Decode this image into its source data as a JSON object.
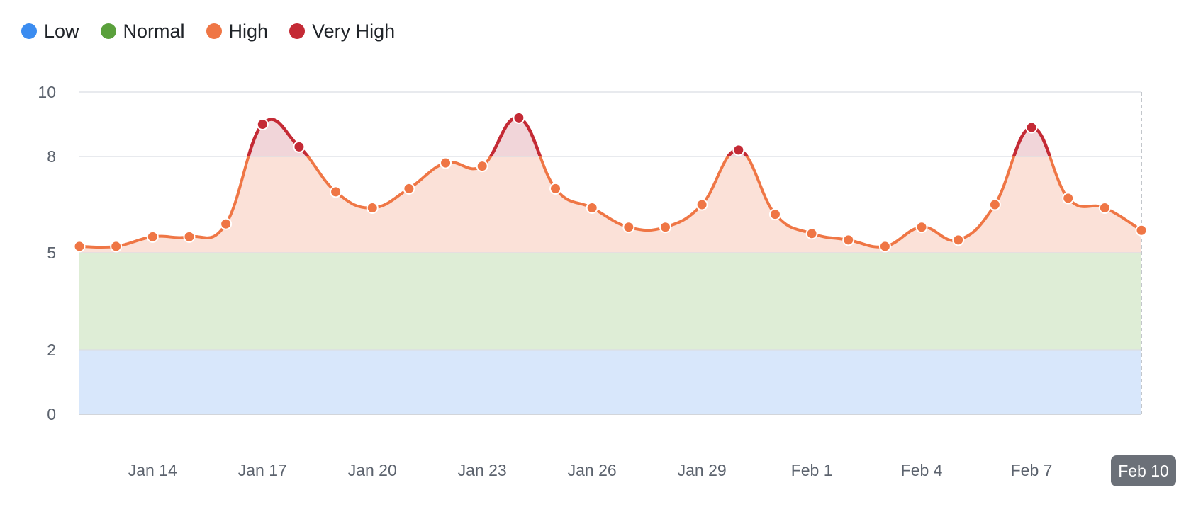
{
  "legend": {
    "items": [
      {
        "label": "Low",
        "color": "#3b8cf0"
      },
      {
        "label": "Normal",
        "color": "#5aa03c"
      },
      {
        "label": "High",
        "color": "#ef7645"
      },
      {
        "label": "Very High",
        "color": "#c42a35"
      }
    ]
  },
  "colors": {
    "line": "#ef7645",
    "very_high": "#c42a35",
    "band_low": "#d8e7fb",
    "band_normal": "#deedd6",
    "band_high": "#fbe1d8",
    "band_very_high": "#f1d5d9",
    "grid": "#dadde3",
    "axis_text": "#5c636e",
    "crosshair_label_bg": "#6b7078"
  },
  "chart_data": {
    "type": "line",
    "title": "",
    "xlabel": "",
    "ylabel": "",
    "y_ticks": [
      0,
      2,
      5,
      8,
      10
    ],
    "ylim": [
      0,
      10
    ],
    "x_tick_labels": [
      "Jan 14",
      "Jan 17",
      "Jan 20",
      "Jan 23",
      "Jan 26",
      "Jan 29",
      "Feb 1",
      "Feb 4",
      "Feb 7",
      "Feb 10"
    ],
    "bands": [
      {
        "label": "Low",
        "from": 0,
        "to": 2
      },
      {
        "label": "Normal",
        "from": 2,
        "to": 5
      },
      {
        "label": "High",
        "from": 5,
        "to": 8
      },
      {
        "label": "Very High",
        "from": 8,
        "to": 10
      }
    ],
    "crosshair_label": "Feb 10",
    "series": [
      {
        "x": [
          "Jan 12",
          "Jan 13",
          "Jan 14",
          "Jan 15",
          "Jan 16",
          "Jan 17",
          "Jan 18",
          "Jan 19",
          "Jan 20",
          "Jan 21",
          "Jan 22",
          "Jan 23",
          "Jan 24",
          "Jan 25",
          "Jan 26",
          "Jan 27",
          "Jan 28",
          "Jan 29",
          "Jan 30",
          "Jan 31",
          "Feb 1",
          "Feb 2",
          "Feb 3",
          "Feb 4",
          "Feb 5",
          "Feb 6",
          "Feb 7",
          "Feb 8",
          "Feb 9",
          "Feb 10"
        ],
        "values": [
          5.2,
          5.2,
          5.5,
          5.5,
          5.9,
          9.0,
          8.3,
          6.9,
          6.4,
          7.0,
          7.8,
          7.7,
          9.2,
          7.0,
          6.4,
          5.8,
          5.8,
          6.5,
          8.2,
          6.2,
          5.6,
          5.4,
          5.2,
          5.8,
          5.4,
          6.5,
          8.9,
          6.7,
          6.4,
          5.7
        ]
      }
    ]
  }
}
